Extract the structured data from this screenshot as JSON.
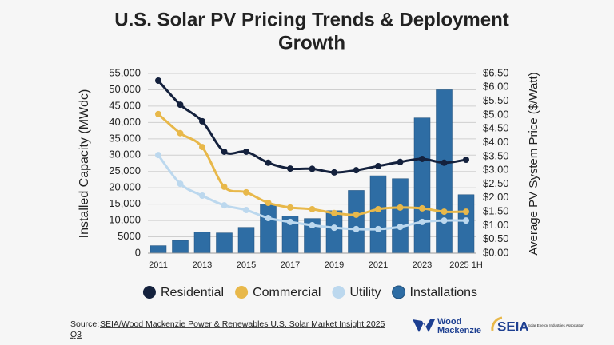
{
  "chart_data": {
    "type": "combo",
    "title": "U.S. Solar PV Pricing Trends & Deployment",
    "title_line2": "Growth",
    "y_label": "Installed Capacity (MWdc)",
    "y2_label": "Average PV System Price ($/Watt)",
    "categories": [
      "2011",
      null,
      "2013",
      null,
      "2015",
      null,
      "2017",
      null,
      "2019",
      null,
      "2021",
      null,
      "2023",
      null,
      "2025 1H"
    ],
    "ylim": [
      0,
      55000
    ],
    "yticks": [
      0,
      5000,
      {
        "value": 10000,
        "label": "10,000"
      },
      {
        "value": 15000,
        "label": "15,000"
      },
      {
        "value": 20000,
        "label": "20,000"
      },
      {
        "value": 25000,
        "label": "25,000"
      },
      {
        "value": 30000,
        "label": "30,000"
      },
      {
        "value": 35000,
        "label": "35,000"
      },
      {
        "value": 40000,
        "label": "40,000"
      },
      {
        "value": 45000,
        "label": "45,000"
      },
      {
        "value": 50000,
        "label": "50,000"
      },
      {
        "value": 55000,
        "label": "55,000"
      }
    ],
    "y2lim": [
      0,
      6.5
    ],
    "y2ticks": [
      {
        "value": 0,
        "label": "$0.00"
      },
      {
        "value": 0.5,
        "label": "$0.50"
      },
      {
        "value": 1,
        "label": "$1.00"
      },
      {
        "value": 1.5,
        "label": "$1.50"
      },
      {
        "value": 2,
        "label": "$2.00"
      },
      {
        "value": 2.5,
        "label": "$2.50"
      },
      {
        "value": 3,
        "label": "$3.00"
      },
      {
        "value": 3.5,
        "label": "$3.50"
      },
      {
        "value": 4,
        "label": "$4.00"
      },
      {
        "value": 4.5,
        "label": "$4.50"
      },
      {
        "value": 5,
        "label": "$5.00"
      },
      {
        "value": 5.5,
        "label": "$5.50"
      },
      {
        "value": 6,
        "label": "$6.00"
      },
      {
        "value": 6.5,
        "label": "$6.50"
      }
    ],
    "grid": true,
    "series": [
      {
        "name": "Residential",
        "type": "line",
        "axis": "y2",
        "color": "#14213d",
        "values": [
          6.24,
          5.37,
          4.77,
          3.67,
          3.67,
          3.27,
          3.06,
          3.05,
          2.92,
          3.0,
          3.15,
          3.3,
          3.41,
          3.27,
          3.38
        ]
      },
      {
        "name": "Commercial",
        "type": "line",
        "axis": "y2",
        "color": "#e8b84a",
        "values": [
          5.03,
          4.34,
          3.84,
          2.4,
          2.2,
          1.82,
          1.65,
          1.59,
          1.45,
          1.39,
          1.59,
          1.65,
          1.62,
          1.5,
          1.5
        ]
      },
      {
        "name": "Utility",
        "type": "line",
        "axis": "y2",
        "color": "#bcd8ee",
        "values": [
          3.55,
          2.51,
          2.08,
          1.73,
          1.56,
          1.27,
          1.13,
          1.01,
          0.92,
          0.87,
          0.87,
          0.95,
          1.13,
          1.18,
          1.18
        ]
      },
      {
        "name": "Installations",
        "type": "bar",
        "axis": "y",
        "color": "#2e6da4",
        "values": [
          2300,
          3900,
          6400,
          6200,
          7900,
          15000,
          11300,
          10600,
          13000,
          19200,
          23700,
          22800,
          41400,
          50000,
          17900
        ]
      }
    ],
    "legend": "bottom",
    "source_label": "Source:",
    "source": "SEIA/Wood Mackenzie Power & Renewables U.S. Solar Market Insight 2025",
    "source_line2": "Q3"
  },
  "logos": {
    "woodmac": "Wood",
    "woodmac2": "Mackenzie",
    "seia": "SEIA",
    "seia_sub": "Solar Energy Industries Association"
  }
}
